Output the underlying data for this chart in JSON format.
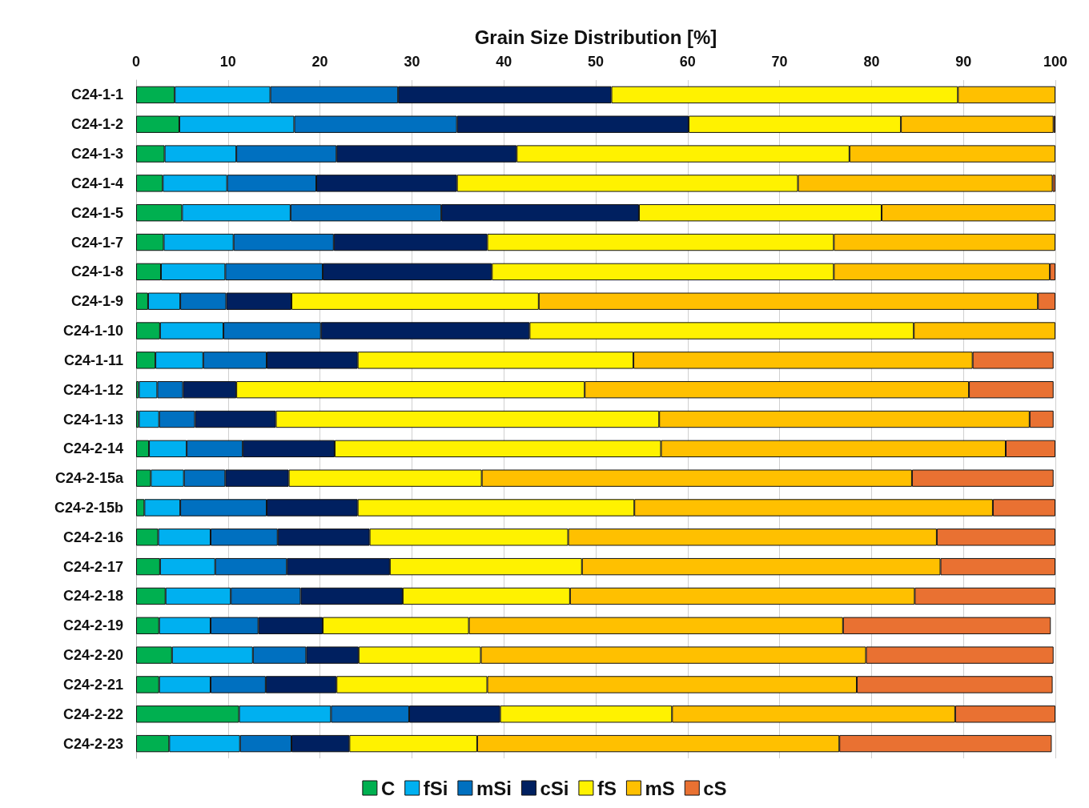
{
  "chart_data": {
    "type": "bar",
    "orientation": "horizontal",
    "stacked": true,
    "xlabel": "Grain Size Distribution [%]",
    "categories": [
      "C24-1-1",
      "C24-1-2",
      "C24-1-3",
      "C24-1-4",
      "C24-1-5",
      "C24-1-7",
      "C24-1-8",
      "C24-1-9",
      "C24-1-10",
      "C24-1-11",
      "C24-1-12",
      "C24-1-13",
      "C24-2-14",
      "C24-2-15a",
      "C24-2-15b",
      "C24-2-16",
      "C24-2-17",
      "C24-2-18",
      "C24-2-19",
      "C24-2-20",
      "C24-2-21",
      "C24-2-22",
      "C24-2-23"
    ],
    "series": [
      {
        "name": "C",
        "color": "#00b050",
        "values": [
          4.2,
          4.7,
          3.1,
          2.9,
          5.0,
          3.0,
          2.7,
          1.3,
          2.6,
          2.1,
          0.3,
          0.3,
          1.4,
          1.6,
          0.9,
          2.4,
          2.6,
          3.2,
          2.5,
          3.9,
          2.5,
          11.2,
          3.6
        ]
      },
      {
        "name": "fSi",
        "color": "#00b0f0",
        "values": [
          10.4,
          12.5,
          7.8,
          7.0,
          11.8,
          7.6,
          7.0,
          3.5,
          6.9,
          5.2,
          2.0,
          2.2,
          4.1,
          3.6,
          3.9,
          5.7,
          6.0,
          7.1,
          5.6,
          8.8,
          5.6,
          10.0,
          7.7
        ]
      },
      {
        "name": "mSi",
        "color": "#0070c0",
        "values": [
          13.9,
          17.7,
          10.9,
          9.7,
          16.4,
          10.9,
          10.6,
          5.0,
          10.6,
          6.9,
          2.8,
          3.9,
          6.1,
          4.5,
          9.4,
          7.3,
          7.8,
          7.6,
          5.2,
          5.8,
          6.0,
          8.5,
          5.6
        ]
      },
      {
        "name": "cSi",
        "color": "#002060",
        "values": [
          23.2,
          25.2,
          19.6,
          15.3,
          21.5,
          16.7,
          18.4,
          7.1,
          22.7,
          9.9,
          5.8,
          8.8,
          10.0,
          6.9,
          9.9,
          10.0,
          11.2,
          11.1,
          7.0,
          5.7,
          7.7,
          9.9,
          6.3
        ]
      },
      {
        "name": "fS",
        "color": "#fff200",
        "values": [
          37.7,
          23.1,
          36.2,
          37.1,
          26.4,
          37.7,
          37.2,
          26.9,
          41.8,
          30.0,
          37.9,
          41.7,
          35.5,
          21.0,
          30.1,
          21.6,
          20.9,
          18.2,
          15.9,
          13.3,
          16.4,
          18.7,
          13.9
        ]
      },
      {
        "name": "mS",
        "color": "#ffc000",
        "values": [
          10.6,
          16.6,
          22.4,
          27.7,
          18.9,
          24.1,
          23.5,
          54.3,
          15.4,
          36.9,
          41.8,
          40.3,
          37.5,
          46.8,
          39.0,
          40.1,
          39.0,
          37.5,
          40.7,
          41.9,
          40.2,
          30.8,
          39.4
        ]
      },
      {
        "name": "cS",
        "color": "#e97132",
        "values": [
          0,
          0.2,
          0,
          0.3,
          0,
          0,
          0.6,
          1.9,
          0,
          8.8,
          9.2,
          2.6,
          5.4,
          15.4,
          6.8,
          12.9,
          12.5,
          15.3,
          22.6,
          20.4,
          21.3,
          10.9,
          23.1
        ]
      }
    ],
    "xlim": [
      0,
      100
    ],
    "xticks": [
      0,
      10,
      20,
      30,
      40,
      50,
      60,
      70,
      80,
      90,
      100
    ],
    "grid": "x",
    "legend": "bottom"
  }
}
